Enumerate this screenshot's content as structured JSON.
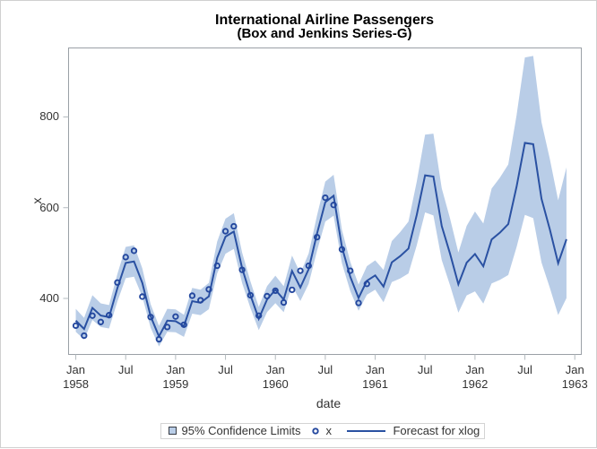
{
  "figure": {
    "title": "International Airline Passengers",
    "subtitle": "(Box and Jenkins Series-G)"
  },
  "axes": {
    "x_label": "date",
    "y_label": "x",
    "y_ticks": [
      400,
      600,
      800
    ],
    "x_ticks": [
      {
        "m": 0,
        "label": "Jan",
        "year": "1958"
      },
      {
        "m": 6,
        "label": "Jul"
      },
      {
        "m": 12,
        "label": "Jan",
        "year": "1959"
      },
      {
        "m": 18,
        "label": "Jul"
      },
      {
        "m": 24,
        "label": "Jan",
        "year": "1960"
      },
      {
        "m": 30,
        "label": "Jul"
      },
      {
        "m": 36,
        "label": "Jan",
        "year": "1961"
      },
      {
        "m": 42,
        "label": "Jul"
      },
      {
        "m": 48,
        "label": "Jan",
        "year": "1962"
      },
      {
        "m": 54,
        "label": "Jul"
      },
      {
        "m": 60,
        "label": "Jan",
        "year": "1963"
      }
    ]
  },
  "legend": {
    "band_label": "95% Confidence Limits",
    "marker_label": "x",
    "line_label": "Forecast for xlog"
  },
  "colors": {
    "band": "#b9cde7",
    "line": "#2a51a2",
    "marker": "#23479e",
    "frame": "#9aa0a6",
    "tick": "#b4babf",
    "text": "#333333",
    "title": "#000000",
    "legend_border": "#d4d4d4",
    "figure_border": "#d0d0d0"
  },
  "chart_data": {
    "type": "line",
    "title": "International Airline Passengers",
    "subtitle": "(Box and Jenkins Series-G)",
    "xlabel": "date",
    "ylabel": "x",
    "x": [
      "1958-01",
      "1958-02",
      "1958-03",
      "1958-04",
      "1958-05",
      "1958-06",
      "1958-07",
      "1958-08",
      "1958-09",
      "1958-10",
      "1958-11",
      "1958-12",
      "1959-01",
      "1959-02",
      "1959-03",
      "1959-04",
      "1959-05",
      "1959-06",
      "1959-07",
      "1959-08",
      "1959-09",
      "1959-10",
      "1959-11",
      "1959-12",
      "1960-01",
      "1960-02",
      "1960-03",
      "1960-04",
      "1960-05",
      "1960-06",
      "1960-07",
      "1960-08",
      "1960-09",
      "1960-10",
      "1960-11",
      "1960-12",
      "1961-01",
      "1961-02",
      "1961-03",
      "1961-04",
      "1961-05",
      "1961-06",
      "1961-07",
      "1961-08",
      "1961-09",
      "1961-10",
      "1961-11",
      "1961-12",
      "1962-01",
      "1962-02",
      "1962-03",
      "1962-04",
      "1962-05",
      "1962-06",
      "1962-07",
      "1962-08",
      "1962-09",
      "1962-10",
      "1962-11",
      "1962-12"
    ],
    "series": [
      {
        "name": "x",
        "kind": "scatter",
        "values": [
          340,
          318,
          362,
          348,
          363,
          435,
          491,
          505,
          404,
          359,
          310,
          337,
          360,
          342,
          406,
          396,
          420,
          472,
          548,
          559,
          463,
          407,
          362,
          405,
          417,
          391,
          419,
          461,
          472,
          535,
          622,
          606,
          508,
          461,
          390,
          432,
          null,
          null,
          null,
          null,
          null,
          null,
          null,
          null,
          null,
          null,
          null,
          null,
          null,
          null,
          null,
          null,
          null,
          null,
          null,
          null,
          null,
          null,
          null,
          null
        ]
      },
      {
        "name": "Forecast for xlog",
        "kind": "line",
        "values": [
          351.1,
          332.7,
          379.1,
          362.3,
          358.9,
          422.7,
          478.2,
          481.5,
          434.1,
          360.7,
          316.2,
          351.0,
          349.9,
          339.0,
          394.1,
          390.4,
          404.5,
          489.3,
          536.1,
          547.4,
          466.6,
          407.3,
          355.1,
          397.8,
          419.0,
          397.6,
          460.6,
          424.1,
          464.6,
          542.4,
          612.2,
          626.3,
          513.3,
          447.9,
          401.0,
          438.8,
          450.7,
          426.1,
          479.5,
          493.1,
          509.9,
          584.4,
          671.4,
          668.6,
          559.6,
          498.6,
          431.2,
          478.8,
          497.9,
          470.8,
          530.0,
          545.1,
          563.8,
          646.4,
          742.8,
          739.9,
          619.4,
          552.0,
          477.5,
          530.4
        ]
      },
      {
        "name": "95% Confidence Limits",
        "kind": "band",
        "lower": [
          326.5,
          309.4,
          352.5,
          336.9,
          333.8,
          393.1,
          444.7,
          447.8,
          403.7,
          335.5,
          294.0,
          326.4,
          325.4,
          315.3,
          366.5,
          363.1,
          376.2,
          455.0,
          498.6,
          509.0,
          433.9,
          378.8,
          330.2,
          369.9,
          389.7,
          369.7,
          428.3,
          394.4,
          432.1,
          504.4,
          569.3,
          582.4,
          477.4,
          416.5,
          372.9,
          408.1,
          419.1,
          391.5,
          435.9,
          443.9,
          455.0,
          517.3,
          589.7,
          583.0,
          484.6,
          428.9,
          368.5,
          406.7,
          415.6,
          388.7,
          433.0,
          440.9,
          451.6,
          513.0,
          584.3,
          577.0,
          479.0,
          423.5,
          363.4,
          400.6
        ],
        "upper": [
          377.0,
          357.3,
          407.1,
          389.0,
          385.4,
          453.9,
          513.5,
          517.0,
          466.2,
          387.4,
          339.5,
          377.0,
          375.8,
          364.0,
          423.2,
          419.2,
          434.4,
          525.4,
          575.7,
          587.8,
          501.0,
          437.4,
          381.3,
          427.2,
          450.0,
          426.9,
          494.6,
          455.4,
          498.9,
          582.4,
          657.4,
          672.5,
          551.2,
          481.0,
          430.6,
          471.2,
          484.0,
          462.9,
          526.3,
          546.1,
          569.4,
          657.7,
          761.1,
          763.1,
          642.9,
          576.3,
          501.3,
          559.9,
          591.5,
          565.1,
          642.2,
          666.5,
          695.3,
          803.8,
          931.0,
          934.5,
          788.2,
          707.4,
          616.2,
          689.0
        ]
      }
    ],
    "ylim": [
      276.5,
      952.1
    ],
    "xlim_months": [
      -0.868,
      60.784
    ],
    "y_ticks": [
      400,
      600,
      800
    ],
    "x_ticks_months": [
      0,
      6,
      12,
      18,
      24,
      30,
      36,
      42,
      48,
      54,
      60
    ],
    "grid": false,
    "legend_position": "bottom"
  }
}
